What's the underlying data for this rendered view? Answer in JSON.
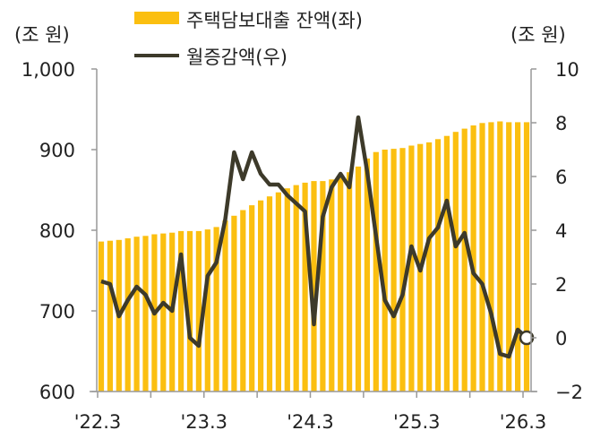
{
  "chart_data": {
    "type": "bar+line",
    "title": "",
    "left_axis": {
      "unit_label": "(조 원)",
      "ticks": [
        "1,000",
        "900",
        "800",
        "700",
        "600"
      ],
      "tick_values": [
        1000,
        900,
        800,
        700,
        600
      ],
      "ylim": [
        600,
        1000
      ]
    },
    "right_axis": {
      "unit_label": "(조 원)",
      "ticks": [
        "10",
        "8",
        "6",
        "4",
        "2",
        "0",
        "−2"
      ],
      "tick_values": [
        10,
        8,
        6,
        4,
        2,
        0,
        -2
      ],
      "ylim": [
        -2,
        10
      ]
    },
    "x_ticks": [
      "'22.3",
      "'23.3",
      "'24.3",
      "'25.3",
      "'26.3"
    ],
    "x": [
      "'22.3",
      "'22.4",
      "'22.5",
      "'22.6",
      "'22.7",
      "'22.8",
      "'22.9",
      "'22.10",
      "'22.11",
      "'22.12",
      "'23.1",
      "'23.2",
      "'23.3",
      "'23.4",
      "'23.5",
      "'23.6",
      "'23.7",
      "'23.8",
      "'23.9",
      "'23.10",
      "'23.11",
      "'23.12",
      "'24.1",
      "'24.2",
      "'24.3",
      "'24.4",
      "'24.5",
      "'24.6",
      "'24.7",
      "'24.8",
      "'24.9",
      "'24.10",
      "'24.11",
      "'24.12",
      "'25.1",
      "'25.2",
      "'25.3",
      "'25.4",
      "'25.5",
      "'25.6",
      "'25.7",
      "'25.8",
      "'25.9",
      "'25.10",
      "'25.11",
      "'25.12",
      "'26.1",
      "'26.2",
      "'26.3"
    ],
    "legend": [
      {
        "name": "주택담보대출 잔액(좌)",
        "type": "bar",
        "color": "#FBBF10"
      },
      {
        "name": "월증감액(우)",
        "type": "line",
        "color": "#3D3A2A"
      }
    ],
    "legend_position": "top",
    "grid": false,
    "series": [
      {
        "name": "주택담보대출 잔액(좌)",
        "axis": "left",
        "type": "bar",
        "values": [
          786,
          787,
          788,
          790,
          792,
          793,
          795,
          796,
          797,
          799,
          799,
          799,
          801,
          804,
          812,
          818,
          825,
          831,
          837,
          842,
          847,
          852,
          856,
          859,
          861,
          861,
          863,
          868,
          872,
          879,
          889,
          897,
          900,
          901,
          902,
          905,
          907,
          909,
          913,
          917,
          922,
          926,
          930,
          933,
          934,
          935,
          934,
          934,
          934
        ]
      },
      {
        "name": "월증감액(우)",
        "axis": "right",
        "type": "line",
        "values": [
          2.1,
          2.0,
          0.8,
          1.4,
          1.9,
          1.6,
          0.9,
          1.3,
          1.0,
          3.1,
          0.0,
          -0.3,
          2.3,
          2.8,
          4.4,
          6.9,
          5.9,
          6.9,
          6.1,
          5.7,
          5.7,
          5.3,
          5.0,
          4.7,
          0.5,
          4.5,
          5.6,
          6.1,
          5.6,
          8.2,
          6.2,
          3.8,
          1.4,
          0.8,
          1.6,
          3.4,
          2.5,
          3.7,
          4.1,
          5.1,
          3.4,
          3.9,
          2.4,
          2.0,
          0.9,
          -0.6,
          -0.7,
          0.3,
          0.0
        ]
      }
    ],
    "last_point_marker": {
      "value": 0.0,
      "style": "open-circle"
    }
  }
}
